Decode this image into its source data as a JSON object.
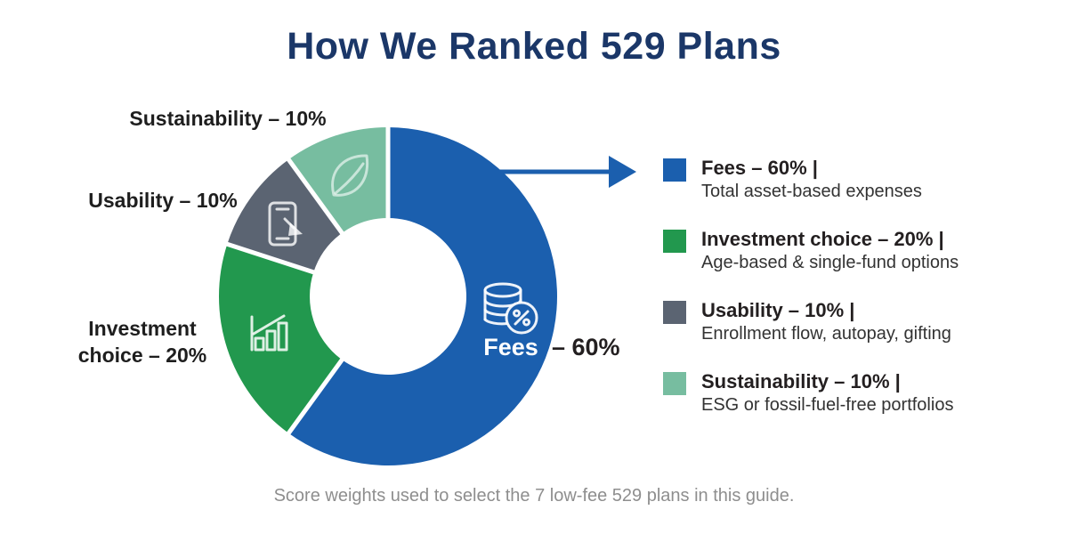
{
  "page": {
    "title": "How We Ranked 529 Plans",
    "caption": "Score weights used to select the 7 low-fee 529 plans in this guide."
  },
  "colors": {
    "title_text": "#1b3768",
    "arrow": "#1b5fae",
    "slice_label_text": "#1e1e1e",
    "inner_label_text": "#ffffff",
    "value_text": "#231f20",
    "caption_text": "#8e8e8e",
    "background": "#ffffff"
  },
  "chart_data": {
    "type": "pie",
    "variant": "donut",
    "title": "How We Ranked 529 Plans",
    "categories": [
      "Fees",
      "Investment choice",
      "Usability",
      "Sustainability"
    ],
    "values": [
      60,
      20,
      10,
      10
    ],
    "unit": "percent",
    "colors": [
      "#1b5fae",
      "#22984e",
      "#5b6472",
      "#77bda0"
    ],
    "start_angle": "12 o'clock",
    "direction": "clockwise",
    "segment_icons": [
      "coins-percent-icon",
      "bar-chart-icon",
      "phone-cursor-icon",
      "leaf-icon"
    ],
    "annotations": {
      "inner_label": "Fees",
      "inner_value": "– 60%",
      "callouts": [
        {
          "segment": "Sustainability",
          "text": "Sustainability – 10%"
        },
        {
          "segment": "Usability",
          "text": "Usability – 10%"
        },
        {
          "segment": "Investment choice",
          "text": "Investment choice – 20%"
        }
      ],
      "arrow": "points from Fees segment to Fees legend entry"
    },
    "legend_position": "right",
    "grid": false
  },
  "labels": {
    "sustainability": "Sustainability – 10%",
    "usability": "Usability – 10%",
    "investment_line1": "Investment",
    "investment_line2": "choice – 20%",
    "fees": "Fees",
    "fees_value": "– 60%"
  },
  "legend": {
    "items": [
      {
        "label": "Fees – 60% |",
        "description": "Total asset-based expenses",
        "color": "#1b5fae"
      },
      {
        "label": "Investment choice – 20% |",
        "description": "Age-based & single-fund options",
        "color": "#22984e"
      },
      {
        "label": "Usability – 10% |",
        "description": "Enrollment flow, autopay, gifting",
        "color": "#5b6472"
      },
      {
        "label": "Sustainability – 10% |",
        "description": "ESG or fossil-fuel-free portfolios",
        "color": "#77bda0"
      }
    ]
  }
}
